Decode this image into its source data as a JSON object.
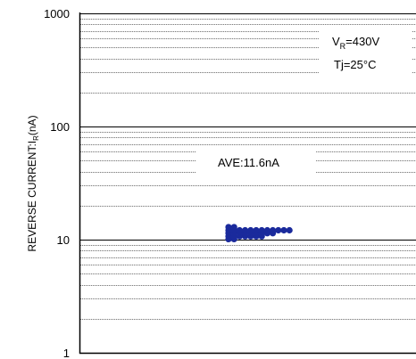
{
  "chart_data": {
    "type": "scatter",
    "yscale": "log",
    "ylim": [
      1,
      1000
    ],
    "yticks": [
      {
        "value": 1,
        "label": "1"
      },
      {
        "value": 10,
        "label": "10"
      },
      {
        "value": 100,
        "label": "100"
      },
      {
        "value": 1000,
        "label": "1000"
      }
    ],
    "ylabel_main": "REVERSE CURRENT:I",
    "ylabel_sub": "R",
    "ylabel_tail": "(nA)",
    "grid": true,
    "marker_color": "#1a2a9c",
    "annotations": {
      "condition_v_main": "V",
      "condition_v_sub": "R",
      "condition_v_tail": "=430V",
      "condition_t": "Tj=25°C",
      "average": "AVE:11.6nA"
    },
    "points": [
      {
        "col": 0,
        "y": 10.1
      },
      {
        "col": 0,
        "y": 10.7
      },
      {
        "col": 0,
        "y": 11.4
      },
      {
        "col": 0,
        "y": 12.1
      },
      {
        "col": 0,
        "y": 12.9
      },
      {
        "col": 1,
        "y": 10.1
      },
      {
        "col": 1,
        "y": 10.7
      },
      {
        "col": 1,
        "y": 11.4
      },
      {
        "col": 1,
        "y": 12.1
      },
      {
        "col": 1,
        "y": 12.9
      },
      {
        "col": 2,
        "y": 10.7
      },
      {
        "col": 2,
        "y": 11.4
      },
      {
        "col": 2,
        "y": 12.1
      },
      {
        "col": 3,
        "y": 10.7
      },
      {
        "col": 3,
        "y": 11.4
      },
      {
        "col": 3,
        "y": 12.1
      },
      {
        "col": 4,
        "y": 10.7
      },
      {
        "col": 4,
        "y": 11.4
      },
      {
        "col": 4,
        "y": 12.1
      },
      {
        "col": 5,
        "y": 10.7
      },
      {
        "col": 5,
        "y": 11.4
      },
      {
        "col": 5,
        "y": 12.1
      },
      {
        "col": 6,
        "y": 10.7
      },
      {
        "col": 6,
        "y": 11.4
      },
      {
        "col": 6,
        "y": 12.1
      },
      {
        "col": 7,
        "y": 11.4
      },
      {
        "col": 7,
        "y": 12.1
      },
      {
        "col": 8,
        "y": 11.4
      },
      {
        "col": 8,
        "y": 12.1
      },
      {
        "col": 9,
        "y": 12.1
      },
      {
        "col": 10,
        "y": 12.1
      },
      {
        "col": 11,
        "y": 12.1
      }
    ]
  }
}
